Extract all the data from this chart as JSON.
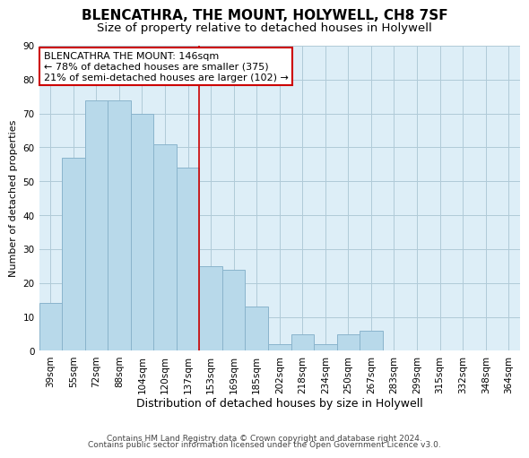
{
  "title": "BLENCATHRA, THE MOUNT, HOLYWELL, CH8 7SF",
  "subtitle": "Size of property relative to detached houses in Holywell",
  "xlabel": "Distribution of detached houses by size in Holywell",
  "ylabel": "Number of detached properties",
  "categories": [
    "39sqm",
    "55sqm",
    "72sqm",
    "88sqm",
    "104sqm",
    "120sqm",
    "137sqm",
    "153sqm",
    "169sqm",
    "185sqm",
    "202sqm",
    "218sqm",
    "234sqm",
    "250sqm",
    "267sqm",
    "283sqm",
    "299sqm",
    "315sqm",
    "332sqm",
    "348sqm",
    "364sqm"
  ],
  "values": [
    14,
    57,
    74,
    74,
    70,
    61,
    54,
    25,
    24,
    13,
    2,
    5,
    2,
    5,
    6,
    0,
    0,
    0,
    0,
    0,
    0
  ],
  "bar_color": "#b8d9ea",
  "bar_edge_color": "#8ab4cc",
  "highlight_index": 7,
  "highlight_line_color": "#cc0000",
  "annotation_box_text": "BLENCATHRA THE MOUNT: 146sqm\n← 78% of detached houses are smaller (375)\n21% of semi-detached houses are larger (102) →",
  "annotation_box_color": "#ffffff",
  "annotation_box_edge_color": "#cc0000",
  "ylim": [
    0,
    90
  ],
  "yticks": [
    0,
    10,
    20,
    30,
    40,
    50,
    60,
    70,
    80,
    90
  ],
  "background_color": "#ffffff",
  "plot_bg_color": "#ddeef7",
  "grid_color": "#b0cad8",
  "footer_line1": "Contains HM Land Registry data © Crown copyright and database right 2024.",
  "footer_line2": "Contains public sector information licensed under the Open Government Licence v3.0.",
  "title_fontsize": 11,
  "subtitle_fontsize": 9.5,
  "xlabel_fontsize": 9,
  "ylabel_fontsize": 8,
  "tick_fontsize": 7.5,
  "annotation_fontsize": 8,
  "footer_fontsize": 6.5
}
